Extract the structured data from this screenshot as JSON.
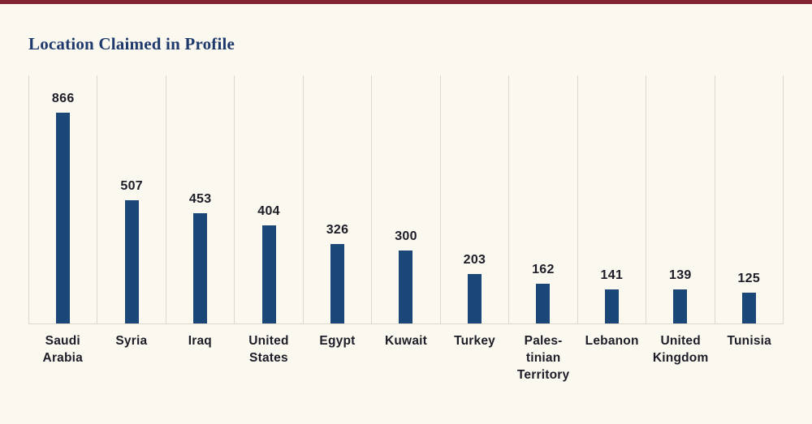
{
  "colors": {
    "background": "#fbf8ef",
    "accent": "#822433",
    "title": "#1e3a6d",
    "bar": "#1b4778",
    "grid": "#dcd8cb",
    "text": "#1d1d28"
  },
  "title": "Location Claimed in Profile",
  "chart_data": {
    "type": "bar",
    "title": "Location Claimed in Profile",
    "categories": [
      "Saudi Arabia",
      "Syria",
      "Iraq",
      "United States",
      "Egypt",
      "Kuwait",
      "Turkey",
      "Palestinian Territory",
      "Lebanon",
      "United Kingdom",
      "Tunisia"
    ],
    "category_display_lines": [
      [
        "Saudi",
        "Arabia"
      ],
      [
        "Syria"
      ],
      [
        "Iraq"
      ],
      [
        "United",
        "States"
      ],
      [
        "Egypt"
      ],
      [
        "Kuwait"
      ],
      [
        "Turkey"
      ],
      [
        "Pales-",
        "tinian",
        "Territory"
      ],
      [
        "Lebanon"
      ],
      [
        "United",
        "Kingdom"
      ],
      [
        "Tunisia"
      ]
    ],
    "values": [
      866,
      507,
      453,
      404,
      326,
      300,
      203,
      162,
      141,
      139,
      125
    ],
    "value_labels": [
      "866",
      "507",
      "453",
      "404",
      "326",
      "300",
      "203",
      "162",
      "141",
      "139",
      "125"
    ],
    "xlabel": "",
    "ylabel": "",
    "ylim": [
      0,
      900
    ],
    "grid": "vertical-column-dividers",
    "legend": "none",
    "bar_color": "#1b4778"
  }
}
